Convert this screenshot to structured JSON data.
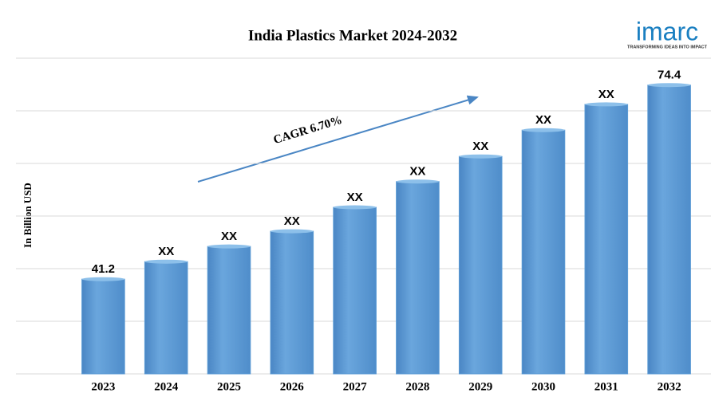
{
  "chart_data": {
    "type": "bar",
    "title": "India Plastics Market 2024-2032",
    "y_label": "In Billion USD",
    "annotation": "CAGR 6.70%",
    "logo": {
      "name": "imarc",
      "tagline": "TRANSFORMING IDEAS INTO IMPACT"
    },
    "categories": [
      "2023",
      "2024",
      "2025",
      "2026",
      "2027",
      "2028",
      "2029",
      "2030",
      "2031",
      "2032"
    ],
    "values": [
      41.2,
      44.2,
      46.8,
      49.4,
      53.5,
      57.9,
      62.2,
      66.7,
      71.1,
      74.4
    ],
    "value_labels": [
      "41.2",
      "XX",
      "XX",
      "XX",
      "XX",
      "XX",
      "XX",
      "XX",
      "XX",
      "74.4"
    ],
    "color": "#5b9bd5",
    "ylim": [
      25,
      79
    ],
    "yticks": [
      25,
      34,
      43,
      52,
      61,
      70,
      79
    ],
    "grid": true
  }
}
